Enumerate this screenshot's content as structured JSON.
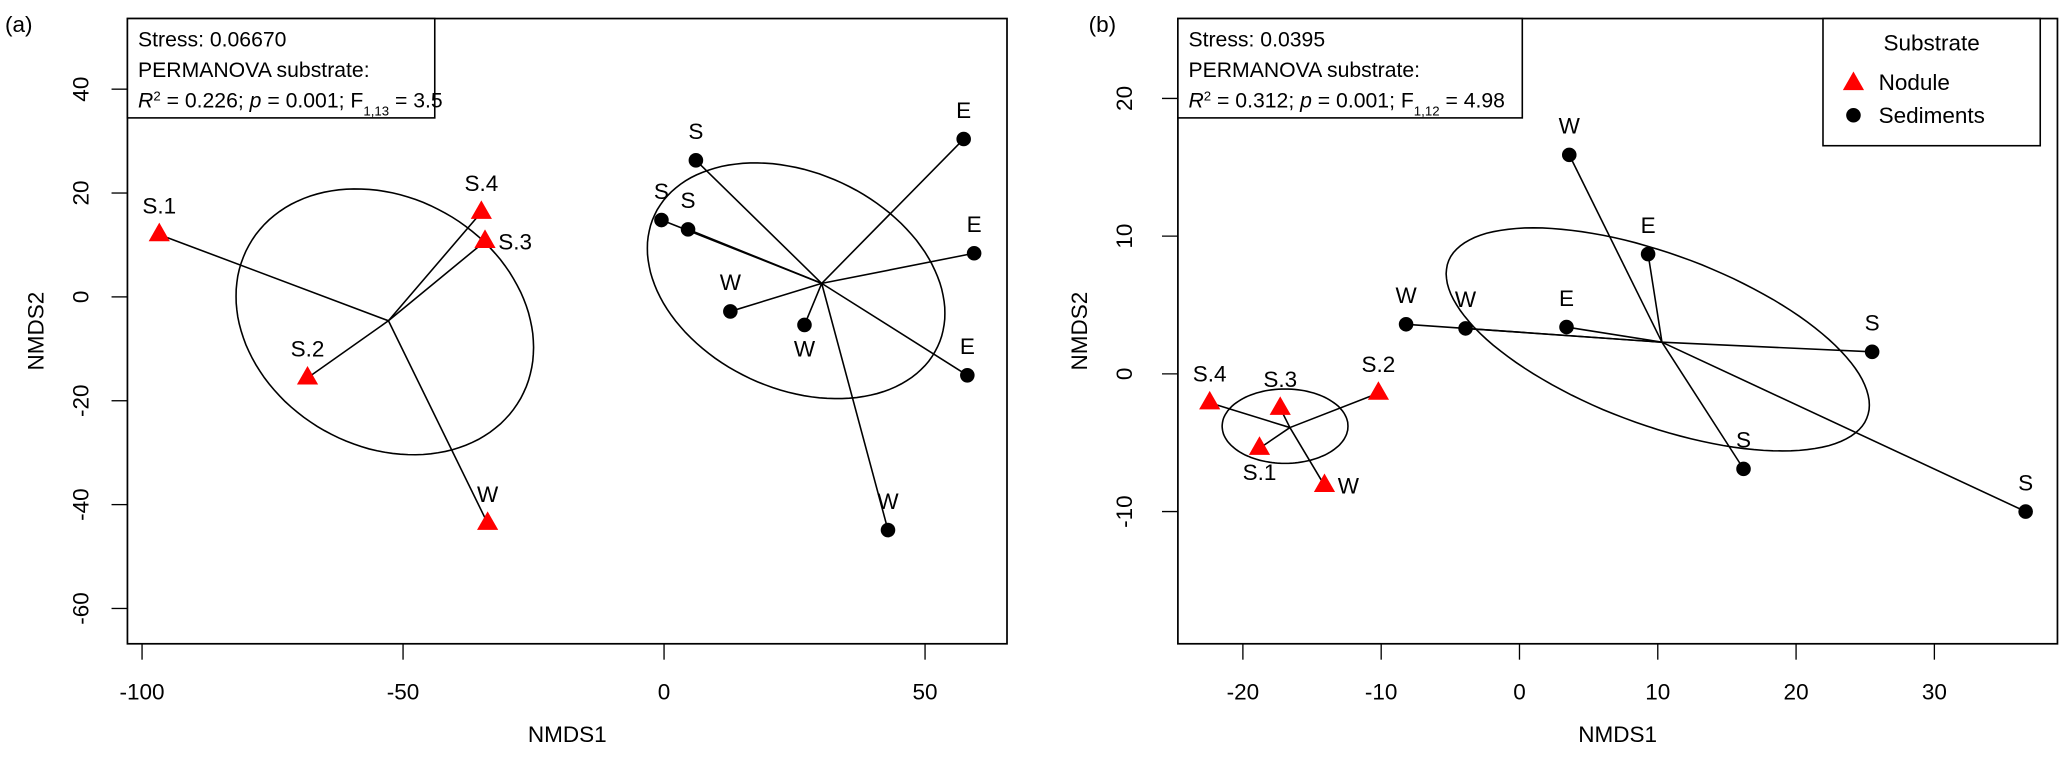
{
  "colors": {
    "nodule": "#ff0000",
    "sediments": "#000000"
  },
  "chart_data": [
    {
      "type": "scatter",
      "panel_label": "(a)",
      "xlabel": "NMDS1",
      "ylabel": "NMDS2",
      "xlim": [
        -102.8,
        65.7
      ],
      "ylim": [
        -66.8,
        53.6
      ],
      "xticks": [
        -100,
        -50,
        0,
        50
      ],
      "yticks": [
        -60,
        -40,
        -20,
        0,
        20,
        40
      ],
      "stats": {
        "stress": "Stress: 0.06670",
        "permanova": "PERMANOVA substrate:",
        "r": "R",
        "r_sup": "2",
        "r_val": " = 0.226; ",
        "p": "p",
        "p_val": " = 0.001; F",
        "f_sub": "1,13",
        "f_val": " = 3.5"
      },
      "groups": [
        {
          "name": "Nodule",
          "marker": "triangle",
          "centroid": [
            -52.8,
            -4.6
          ],
          "ellipse": {
            "center": [
              -53.5,
              -4.8
            ],
            "sx": 28.5,
            "sy": 25.6,
            "phase": 1.765
          },
          "points": [
            {
              "label": "S.1",
              "x": -96.7,
              "y": 12.0,
              "pos": "top"
            },
            {
              "label": "S.4",
              "x": -35.0,
              "y": 16.3,
              "pos": "top"
            },
            {
              "label": "S.3",
              "x": -34.3,
              "y": 10.7,
              "pos": "right"
            },
            {
              "label": "S.2",
              "x": -68.3,
              "y": -15.6,
              "pos": "top"
            },
            {
              "label": "W",
              "x": -33.8,
              "y": -43.6,
              "pos": "top"
            }
          ]
        },
        {
          "name": "Sediments",
          "marker": "circle",
          "centroid": [
            30.2,
            2.6
          ],
          "ellipse": {
            "center": [
              25.3,
              3.1
            ],
            "sx": 28.5,
            "sy": 22.7,
            "phase": 1.85
          },
          "points": [
            {
              "label": "S",
              "x": 6.1,
              "y": 26.3,
              "pos": "top"
            },
            {
              "label": "S",
              "x": -0.5,
              "y": 14.8,
              "pos": "top"
            },
            {
              "label": "S",
              "x": 4.6,
              "y": 13.0,
              "pos": "top"
            },
            {
              "label": "W",
              "x": 12.7,
              "y": -2.8,
              "pos": "top"
            },
            {
              "label": "W",
              "x": 26.9,
              "y": -5.4,
              "pos": "bottom"
            },
            {
              "label": "E",
              "x": 57.4,
              "y": 30.4,
              "pos": "top"
            },
            {
              "label": "E",
              "x": 59.4,
              "y": 8.4,
              "pos": "top"
            },
            {
              "label": "E",
              "x": 58.1,
              "y": -15.1,
              "pos": "top"
            },
            {
              "label": "W",
              "x": 42.9,
              "y": -44.9,
              "pos": "top"
            }
          ]
        }
      ]
    },
    {
      "type": "scatter",
      "panel_label": "(b)",
      "xlabel": "NMDS1",
      "ylabel": "NMDS2",
      "xlim": [
        -24.7,
        38.9
      ],
      "ylim": [
        -19.6,
        25.8
      ],
      "xticks": [
        -20,
        -10,
        0,
        10,
        20,
        30
      ],
      "yticks": [
        -10,
        0,
        10,
        20
      ],
      "stats": {
        "stress": "Stress: 0.0395",
        "permanova": "PERMANOVA substrate:",
        "r": "R",
        "r_sup": "2",
        "r_val": " = 0.312; ",
        "p": "p",
        "p_val": " = 0.001; F",
        "f_sub": "1,12",
        "f_val": " = 4.98"
      },
      "legend": {
        "title": "Substrate",
        "placement": "top-right",
        "items": [
          "Nodule",
          "Sediments"
        ]
      },
      "groups": [
        {
          "name": "Nodule",
          "marker": "triangle",
          "centroid": [
            -16.6,
            -3.9
          ],
          "ellipse": {
            "center": [
              -16.95,
              -3.8
            ],
            "sx": 4.55,
            "sy": 2.7,
            "phase": 1.5708
          },
          "points": [
            {
              "label": "S.4",
              "x": -22.4,
              "y": -2.1,
              "pos": "top"
            },
            {
              "label": "S.3",
              "x": -17.3,
              "y": -2.5,
              "pos": "top"
            },
            {
              "label": "S.2",
              "x": -10.2,
              "y": -1.4,
              "pos": "top"
            },
            {
              "label": "S.1",
              "x": -18.8,
              "y": -5.4,
              "pos": "bottom"
            },
            {
              "label": "W",
              "x": -14.1,
              "y": -8.1,
              "pos": "right"
            }
          ]
        },
        {
          "name": "Sediments",
          "marker": "circle",
          "centroid": [
            10.3,
            2.3
          ],
          "ellipse": {
            "center": [
              10.0,
              2.5
            ],
            "sx": 15.3,
            "sy": 8.1,
            "phase": 2.2
          },
          "points": [
            {
              "label": "W",
              "x": -8.2,
              "y": 3.6,
              "pos": "top"
            },
            {
              "label": "W",
              "x": -3.9,
              "y": 3.3,
              "pos": "top"
            },
            {
              "label": "E",
              "x": 3.4,
              "y": 3.4,
              "pos": "top"
            },
            {
              "label": "E",
              "x": 9.3,
              "y": 8.7,
              "pos": "top"
            },
            {
              "label": "W",
              "x": 3.6,
              "y": 15.9,
              "pos": "top"
            },
            {
              "label": "S",
              "x": 25.5,
              "y": 1.6,
              "pos": "top"
            },
            {
              "label": "S",
              "x": 16.2,
              "y": -6.9,
              "pos": "top"
            },
            {
              "label": "S",
              "x": 36.6,
              "y": -10.0,
              "pos": "top"
            }
          ]
        }
      ]
    }
  ]
}
